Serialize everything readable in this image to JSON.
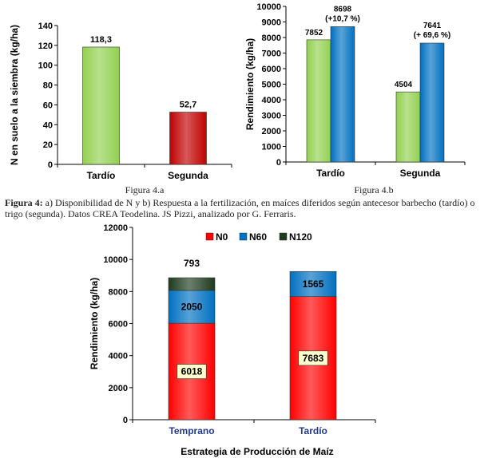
{
  "caption": {
    "prefix": "Figura 4:",
    "text": "a) Disponibilidad de N y b) Respuesta a la fertilización, en maíces diferidos según antecesor barbecho (tardío) o trigo (segunda). Datos CREA Teodelina. JS Pizzi, analizado por G. Ferraris."
  },
  "chart_data": [
    {
      "id": "fig4a",
      "type": "bar",
      "figure_label": "Figura 4.a",
      "ylabel": "N en suelo a la siembra (kg/ha)",
      "ylim": [
        0,
        140
      ],
      "yticks": [
        0,
        20,
        40,
        60,
        80,
        100,
        120,
        140
      ],
      "categories": [
        "Tardío",
        "Segunda"
      ],
      "values": [
        118.3,
        52.7
      ],
      "value_labels": [
        "118,3",
        "52,7"
      ],
      "colors": [
        "#92d050",
        "#c00000"
      ]
    },
    {
      "id": "fig4b",
      "type": "bar",
      "figure_label": "Figura 4.b",
      "ylabel": "Rendimiento (kg/ha)",
      "ylim": [
        0,
        10000
      ],
      "yticks": [
        0,
        1000,
        2000,
        3000,
        4000,
        5000,
        6000,
        7000,
        8000,
        9000,
        10000
      ],
      "categories": [
        "Tardío",
        "Segunda"
      ],
      "series": [
        {
          "values": [
            7852,
            4504
          ],
          "labels": [
            "7852",
            "4504"
          ],
          "color": "#92d050"
        },
        {
          "values": [
            8698,
            7641
          ],
          "labels": [
            "8698",
            "7641"
          ],
          "color": "#0070c0",
          "sublabels": [
            "(+10,7 %)",
            "(+ 69,6 %)"
          ]
        }
      ]
    },
    {
      "id": "fig4c",
      "type": "bar",
      "stacked": true,
      "xlabel": "Estrategia de Producción de Maíz",
      "ylabel": "Rendimiento (kg/ha)",
      "ylim": [
        0,
        12000
      ],
      "yticks": [
        0,
        2000,
        4000,
        6000,
        8000,
        10000,
        12000
      ],
      "legend_position": "top",
      "categories": [
        "Temprano",
        "Tardío"
      ],
      "series": [
        {
          "name": "N0",
          "values": [
            6018,
            7683
          ],
          "color": "#ff0000"
        },
        {
          "name": "N60",
          "values": [
            2050,
            1565
          ],
          "color": "#0070c0"
        },
        {
          "name": "N120",
          "values": [
            793,
            0
          ],
          "color": "#1e3b1e"
        }
      ]
    }
  ]
}
